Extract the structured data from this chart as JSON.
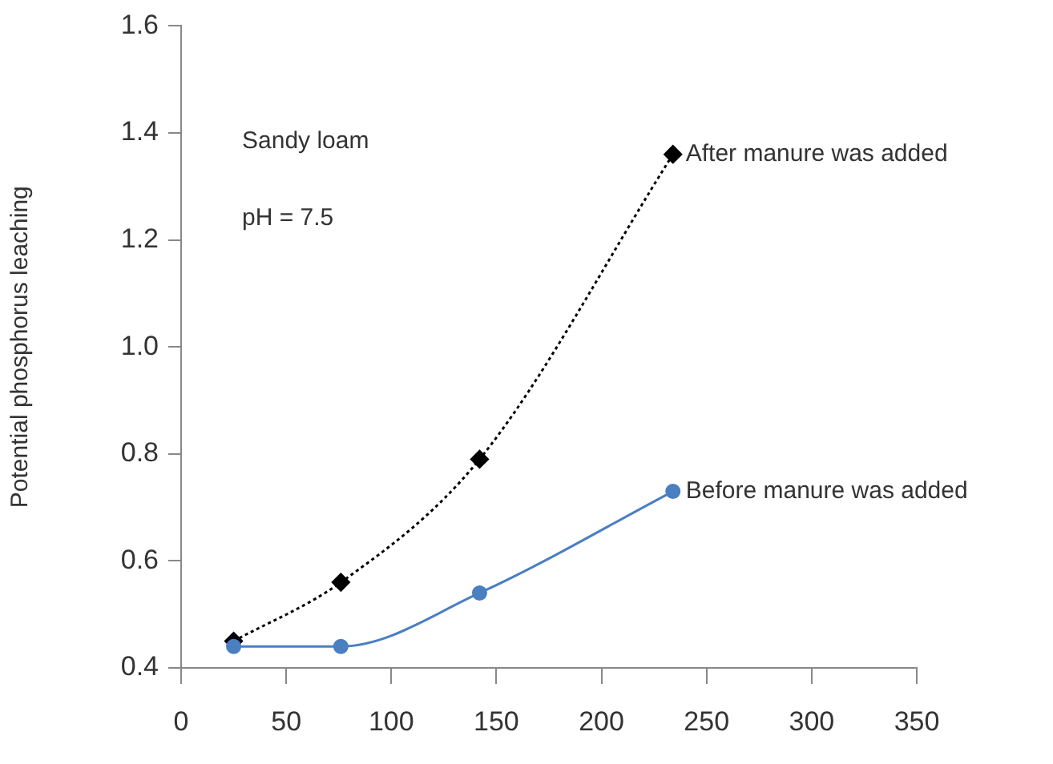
{
  "chart_data": {
    "type": "line",
    "ylabel": "Potential phosphorus leaching",
    "annotations": [
      "Sandy loam",
      "pH = 7.5"
    ],
    "x": [
      25,
      76,
      142,
      234
    ],
    "series": [
      {
        "name": "After manure was added",
        "color": "#000000",
        "values": [
          0.45,
          0.56,
          0.79,
          1.36
        ],
        "marker": "diamond",
        "line_style": "dotted"
      },
      {
        "name": "Before manure was added",
        "color": "#4a7fc1",
        "values": [
          0.44,
          0.44,
          0.54,
          0.73
        ],
        "marker": "circle",
        "line_style": "solid"
      }
    ],
    "xlim": [
      0,
      350
    ],
    "xticks": [
      0,
      50,
      100,
      150,
      200,
      250,
      300,
      350
    ],
    "ylim": [
      0.4,
      1.6
    ],
    "yticks": [
      0.4,
      0.6,
      0.8,
      {
        "value": 1,
        "label": "1.0"
      },
      1.2,
      1.4,
      1.6
    ],
    "grid": false,
    "legend": false
  }
}
